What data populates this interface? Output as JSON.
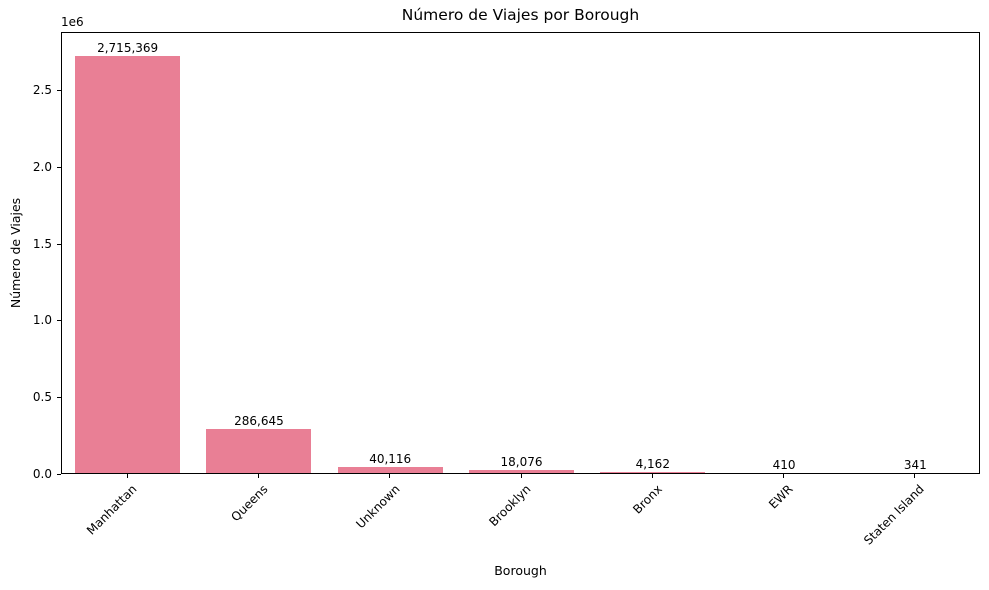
{
  "chart_data": {
    "type": "bar",
    "title": "Número de Viajes por Borough",
    "xlabel": "Borough",
    "ylabel": "Número de Viajes",
    "offset_text": "1e6",
    "categories": [
      "Manhattan",
      "Queens",
      "Unknown",
      "Brooklyn",
      "Bronx",
      "EWR",
      "Staten Island"
    ],
    "values": [
      2715369,
      286645,
      40116,
      18076,
      4162,
      410,
      341
    ],
    "value_labels": [
      "2,715,369",
      "286,645",
      "40,116",
      "18,076",
      "4,162",
      "410",
      "341"
    ],
    "yticks": [
      0.0,
      0.5,
      1.0,
      1.5,
      2.0,
      2.5
    ],
    "ytick_labels": [
      "0.0",
      "0.5",
      "1.0",
      "1.5",
      "2.0",
      "2.5"
    ],
    "ytick_scale": 1000000,
    "ylim": [
      0,
      2877000
    ],
    "bar_color": "#E97F95",
    "axis_color": "#000000",
    "text_color": "#000000",
    "background_color": "#ffffff",
    "grid": false,
    "legend": "none",
    "bar_width_fraction": 0.8
  }
}
